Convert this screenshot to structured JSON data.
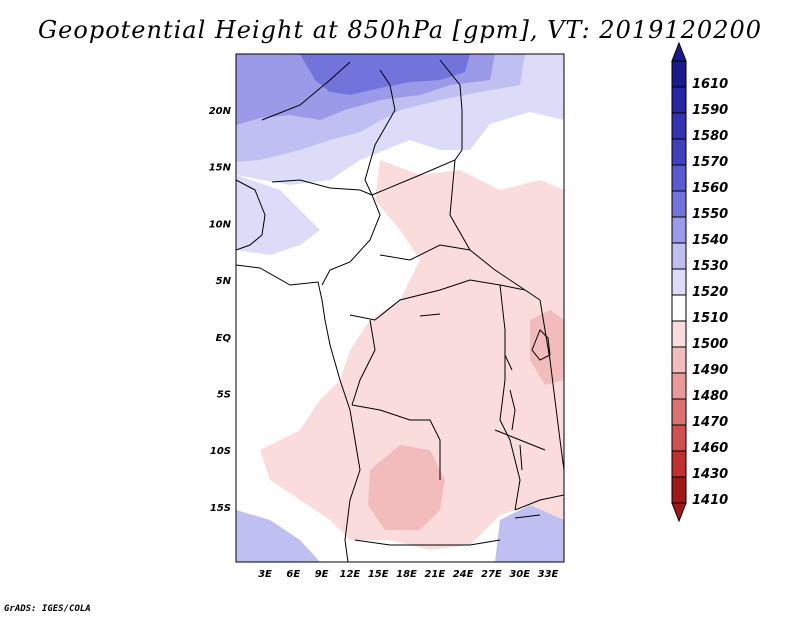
{
  "title": "Geopotential Height at 850hPa [gpm], VT: 2019120200",
  "footer": "GrADS: IGES/COLA",
  "lon_labels": [
    "3E",
    "6E",
    "9E",
    "12E",
    "15E",
    "18E",
    "21E",
    "24E",
    "27E",
    "30E",
    "33E"
  ],
  "lat_labels": [
    "20N",
    "15N",
    "10N",
    "5N",
    "EQ",
    "5S",
    "10S",
    "15S"
  ],
  "colorbar": {
    "levels": [
      "1610",
      "1590",
      "1580",
      "1570",
      "1560",
      "1550",
      "1540",
      "1530",
      "1520",
      "1510",
      "1500",
      "1490",
      "1480",
      "1470",
      "1460",
      "1430",
      "1410"
    ],
    "colors": [
      "#1a1a8c",
      "#2626a6",
      "#3333b3",
      "#4040bf",
      "#5a5ad0",
      "#7373dc",
      "#9a9ae8",
      "#bfbff2",
      "#dcdcf8",
      "#ffffff",
      "#fadcdc",
      "#f2bcbc",
      "#e89a9a",
      "#dc7373",
      "#d05050",
      "#c03030",
      "#a01818"
    ]
  }
}
